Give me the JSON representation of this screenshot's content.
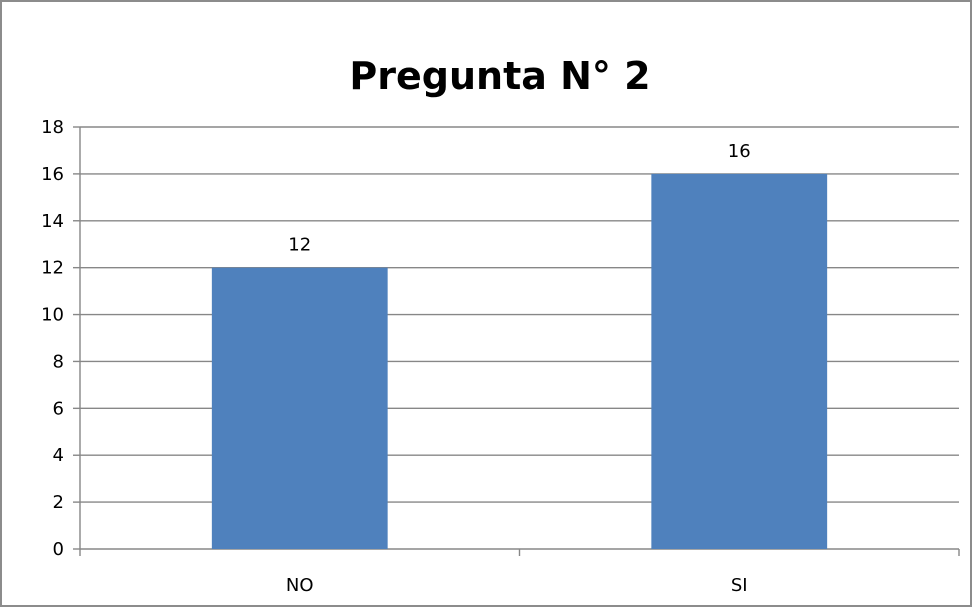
{
  "chart_data": {
    "type": "bar",
    "title": "Pregunta N° 2",
    "categories": [
      "NO",
      "SI"
    ],
    "values": [
      12,
      16
    ],
    "data_labels": [
      "12",
      "16"
    ],
    "xlabel": "",
    "ylabel": "",
    "ylim": [
      0,
      18
    ],
    "y_ticks": [
      "0",
      "2",
      "4",
      "6",
      "8",
      "10",
      "12",
      "14",
      "16",
      "18"
    ],
    "y_step": 2,
    "grid": true,
    "legend": false,
    "bar_color": "#4F81BD",
    "grid_color": "#878787"
  }
}
